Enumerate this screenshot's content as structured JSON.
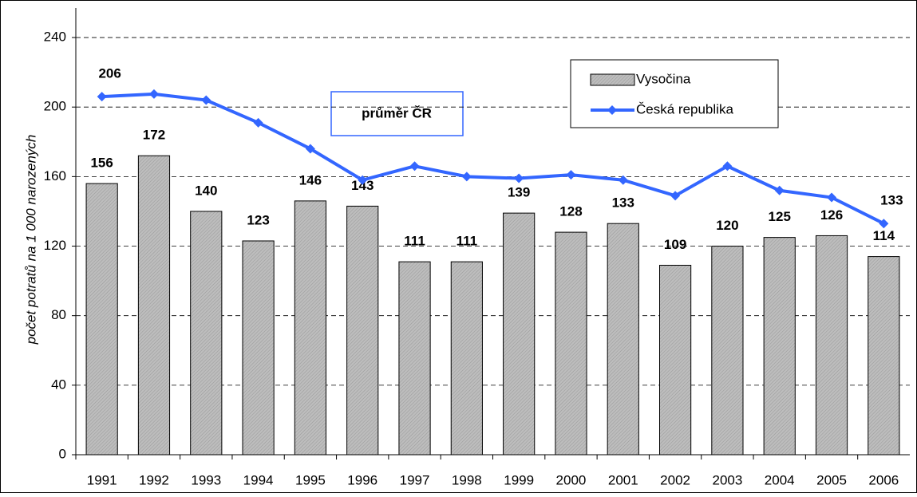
{
  "chart_data": {
    "type": "bar_line",
    "y_label": "počet potratů na 1 000 narozených",
    "annotation": "průměr ČR",
    "categories": [
      "1991",
      "1992",
      "1993",
      "1994",
      "1995",
      "1996",
      "1997",
      "1998",
      "1999",
      "2000",
      "2001",
      "2002",
      "2003",
      "2004",
      "2005",
      "2006"
    ],
    "series": [
      {
        "name": "Vysočina",
        "type": "bar",
        "color": "#b4b4b4",
        "values": [
          156,
          172,
          140,
          123,
          146,
          143,
          111,
          111,
          139,
          128,
          133,
          109,
          120,
          125,
          126,
          114
        ]
      },
      {
        "name": "Česká republika",
        "type": "line",
        "color": "#3366ff",
        "values": [
          206,
          207.5,
          204,
          191,
          176,
          158,
          166,
          160,
          159,
          161,
          158,
          149,
          166,
          152,
          148,
          133
        ],
        "value_labels": [
          "206",
          null,
          null,
          null,
          null,
          null,
          null,
          null,
          null,
          null,
          null,
          null,
          null,
          null,
          null,
          "133"
        ]
      }
    ],
    "ylim": [
      0,
      257
    ],
    "yticks": [
      0,
      40,
      80,
      120,
      160,
      200,
      240
    ],
    "grid": true,
    "legend": "top-right"
  }
}
